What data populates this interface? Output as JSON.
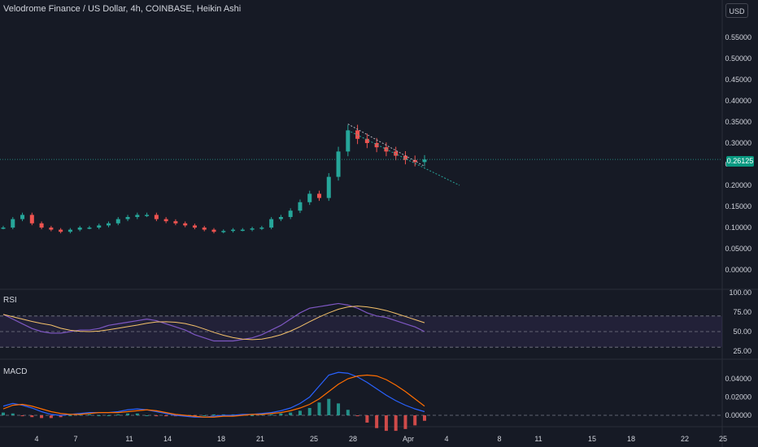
{
  "header": {
    "title": "Velodrome Finance / US Dollar, 4h, COINBASE, Heikin Ashi",
    "currency_button": "USD",
    "last_price": "0.26125"
  },
  "colors": {
    "background": "#161a25",
    "up": "#26a69a",
    "down": "#ef5350",
    "rsi_line": "#7e57c2",
    "rsi_ma": "#f5c26b",
    "macd_line": "#2962ff",
    "signal_line": "#ff6d00",
    "grid": "#232733",
    "text": "#d1d4dc"
  },
  "panes": {
    "rsi_label": "RSI",
    "macd_label": "MACD"
  },
  "chart_data": {
    "type": "candlestick",
    "style": "Heikin Ashi",
    "price_axis": {
      "ticks": [
        "0.55000",
        "0.50000",
        "0.45000",
        "0.40000",
        "0.35000",
        "0.30000",
        "0.25000",
        "0.20000",
        "0.15000",
        "0.10000",
        "0.05000",
        "0.00000"
      ],
      "ylim": [
        0,
        0.55
      ]
    },
    "time_axis": {
      "ticks": [
        "4",
        "7",
        "11",
        "14",
        "18",
        "21",
        "25",
        "28",
        "Apr",
        "4",
        "8",
        "11",
        "15",
        "18",
        "22",
        "25"
      ]
    },
    "price_series": [
      0.1,
      0.12,
      0.13,
      0.11,
      0.1,
      0.095,
      0.09,
      0.095,
      0.1,
      0.1,
      0.105,
      0.11,
      0.12,
      0.125,
      0.13,
      0.13,
      0.12,
      0.115,
      0.11,
      0.105,
      0.1,
      0.095,
      0.09,
      0.092,
      0.095,
      0.095,
      0.098,
      0.1,
      0.12,
      0.125,
      0.14,
      0.16,
      0.18,
      0.17,
      0.22,
      0.28,
      0.33,
      0.31,
      0.3,
      0.29,
      0.28,
      0.27,
      0.26,
      0.255,
      0.261
    ],
    "trendlines": [
      {
        "from": [
          0.33
        ],
        "to": [
          0.24
        ],
        "style": "dotted"
      },
      {
        "from": [
          0.29
        ],
        "to": [
          0.2
        ],
        "style": "dotted"
      }
    ],
    "rsi": {
      "levels": [
        "100.00",
        "75.00",
        "50.00",
        "25.00"
      ],
      "bands": [
        30,
        50,
        70
      ],
      "ylim": [
        20,
        100
      ],
      "values": [
        72,
        66,
        60,
        54,
        50,
        48,
        48,
        50,
        52,
        52,
        54,
        58,
        60,
        62,
        64,
        66,
        64,
        60,
        56,
        52,
        46,
        42,
        38,
        38,
        38,
        40,
        42,
        46,
        52,
        58,
        66,
        74,
        80,
        82,
        84,
        86,
        84,
        80,
        74,
        70,
        68,
        64,
        60,
        56,
        50
      ]
    },
    "macd": {
      "levels": [
        "0.04000",
        "0.02000",
        "0.00000"
      ],
      "ylim": [
        -0.01,
        0.048
      ],
      "macd": [
        0.01,
        0.013,
        0.011,
        0.008,
        0.004,
        0.001,
        0.0,
        0.001,
        0.002,
        0.003,
        0.003,
        0.003,
        0.004,
        0.006,
        0.007,
        0.006,
        0.004,
        0.002,
        0.0,
        -0.001,
        -0.002,
        -0.002,
        -0.001,
        0.0,
        0.0,
        0.001,
        0.001,
        0.002,
        0.003,
        0.005,
        0.008,
        0.013,
        0.02,
        0.032,
        0.044,
        0.047,
        0.046,
        0.042,
        0.036,
        0.029,
        0.022,
        0.016,
        0.011,
        0.007,
        0.004
      ],
      "signal": [
        0.007,
        0.011,
        0.012,
        0.01,
        0.007,
        0.004,
        0.002,
        0.001,
        0.001,
        0.002,
        0.003,
        0.003,
        0.003,
        0.004,
        0.005,
        0.006,
        0.005,
        0.003,
        0.001,
        0.0,
        -0.001,
        -0.002,
        -0.002,
        -0.001,
        -0.001,
        0.0,
        0.001,
        0.001,
        0.002,
        0.003,
        0.005,
        0.008,
        0.012,
        0.018,
        0.026,
        0.034,
        0.04,
        0.043,
        0.044,
        0.043,
        0.039,
        0.033,
        0.026,
        0.018,
        0.01
      ]
    }
  }
}
